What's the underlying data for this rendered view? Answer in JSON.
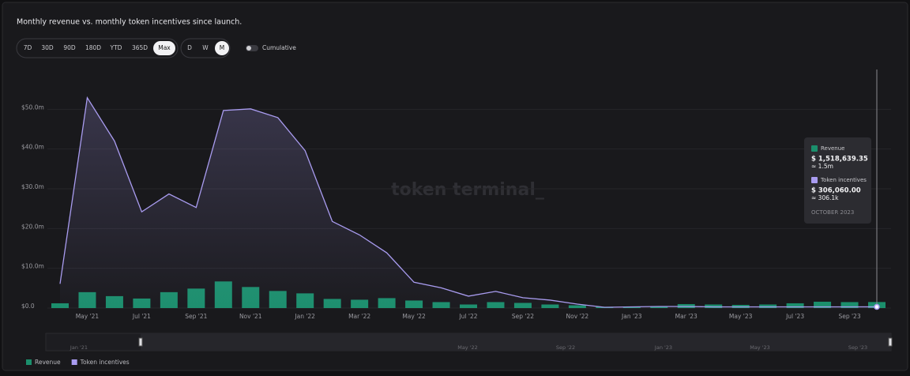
{
  "chart_data": {
    "type": "bar-line",
    "title": "Monthly revenue vs. monthly token incentives since launch.",
    "watermark": "token terminal_",
    "controls": {
      "ranges": [
        "7D",
        "30D",
        "90D",
        "180D",
        "YTD",
        "365D",
        "Max"
      ],
      "active_range": "Max",
      "granularity": [
        "D",
        "W",
        "M"
      ],
      "active_granularity": "M",
      "toggle_label": "Cumulative"
    },
    "categories": [
      null,
      "May '21",
      null,
      "Jul '21",
      null,
      "Sep '21",
      null,
      "Nov '21",
      null,
      "Jan '22",
      null,
      "Mar '22",
      null,
      "May '22",
      null,
      "Jul '22",
      null,
      "Sep '22",
      null,
      "Nov '22",
      null,
      "Jan '23",
      null,
      "Mar '23",
      null,
      "May '23",
      null,
      "Jul '23",
      null,
      "Sep '23",
      null
    ],
    "series": [
      {
        "name": "Revenue",
        "kind": "bar",
        "color": "#1b8f6c",
        "values": [
          1200000,
          4000000,
          3000000,
          2400000,
          4000000,
          4900000,
          6700000,
          5300000,
          4300000,
          3700000,
          2300000,
          2100000,
          2500000,
          1900000,
          1500000,
          900000,
          1500000,
          1300000,
          900000,
          700000,
          300000,
          400000,
          400000,
          1000000,
          900000,
          800000,
          900000,
          1200000,
          1600000,
          1500000,
          1518639.35
        ]
      },
      {
        "name": "Token incentives",
        "kind": "line",
        "color": "#a99cf0",
        "values": [
          6100000,
          52900000,
          42000000,
          24200000,
          28700000,
          25300000,
          49700000,
          50100000,
          47900000,
          39600000,
          21800000,
          18400000,
          13900000,
          6500000,
          5100000,
          3000000,
          4200000,
          2600000,
          2000000,
          1000000,
          200000,
          300000,
          400000,
          400000,
          300000,
          300000,
          300000,
          300000,
          300000,
          300000,
          306060
        ]
      }
    ],
    "ylim": [
      0,
      60000000
    ],
    "yticks": [
      {
        "value": 0,
        "label": "$0.0"
      },
      {
        "value": 10000000,
        "label": "$10.0m"
      },
      {
        "value": 20000000,
        "label": "$20.0m"
      },
      {
        "value": 30000000,
        "label": "$30.0m"
      },
      {
        "value": 40000000,
        "label": "$40.0m"
      },
      {
        "value": 50000000,
        "label": "$50.0m"
      }
    ],
    "grid": true,
    "tooltip": {
      "items": [
        {
          "exact": "$ 1,518,639.35",
          "approx": "≈ 1.5m"
        },
        {
          "exact": "$ 306,060.00",
          "approx": "≈ 306.1k"
        }
      ],
      "date": "OCTOBER 2023"
    },
    "navigator_labels": [
      "Jan '21",
      "May '22",
      "Sep '22",
      "Jan '23",
      "May '23",
      "Sep '23"
    ]
  }
}
